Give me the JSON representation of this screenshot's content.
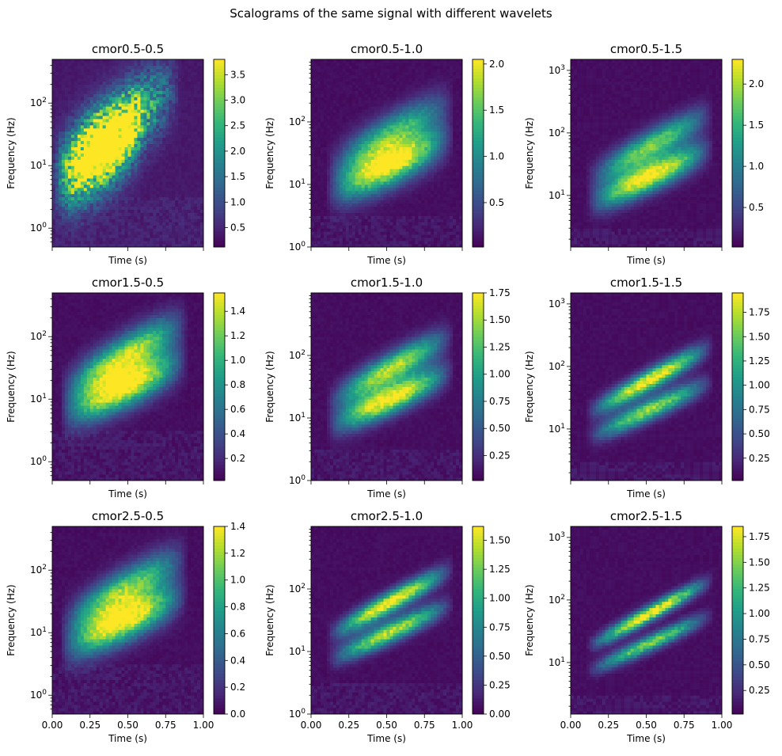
{
  "figure": {
    "suptitle": "Scalograms of the same signal with different wavelets"
  },
  "chart_data": [
    {
      "type": "heatmap",
      "title": "cmor0.5-0.5",
      "xlabel": "Time (s)",
      "ylabel": "Frequency (Hz)",
      "xlim": [
        0,
        1
      ],
      "yscale": "log",
      "ylim": [
        0.5,
        500
      ],
      "y_ticks": [
        "10^0",
        "10^1",
        "10^2"
      ],
      "y_tick_values": [
        1,
        10,
        100
      ],
      "x_ticks": [
        "0.00",
        "0.25",
        "0.50",
        "0.75",
        "1.00"
      ],
      "x_tick_values": [
        0,
        0.25,
        0.5,
        0.75,
        1
      ],
      "show_x_ticklabels": false,
      "colorbar": {
        "ticks": [
          "0.5",
          "1.0",
          "1.5",
          "2.0",
          "2.5",
          "3.0",
          "3.5"
        ],
        "values": [
          0.5,
          1.0,
          1.5,
          2.0,
          2.5,
          3.0,
          3.5
        ],
        "min": 0.12,
        "max": 3.8
      },
      "colormap": "viridis",
      "style": "noisy-broad",
      "chirps": [
        {
          "t0": 0.07,
          "t1": 0.62,
          "f0": 6,
          "f1": 45,
          "gain": 0.9
        },
        {
          "t0": 0.02,
          "t1": 0.85,
          "f0": 8,
          "f1": 200,
          "gain": 0.8
        }
      ]
    },
    {
      "type": "heatmap",
      "title": "cmor0.5-1.0",
      "xlabel": "Time (s)",
      "ylabel": "Frequency (Hz)",
      "xlim": [
        0,
        1
      ],
      "yscale": "log",
      "ylim": [
        1,
        1000
      ],
      "y_ticks": [
        "10^0",
        "10^1",
        "10^2"
      ],
      "y_tick_values": [
        1,
        10,
        100
      ],
      "x_ticks": [
        "0.00",
        "0.25",
        "0.50",
        "0.75",
        "1.00"
      ],
      "x_tick_values": [
        0,
        0.25,
        0.5,
        0.75,
        1
      ],
      "show_x_ticklabels": false,
      "colorbar": {
        "ticks": [
          "0.5",
          "1.0",
          "1.5",
          "2.0"
        ],
        "values": [
          0.5,
          1.0,
          1.5,
          2.0
        ],
        "min": 0.02,
        "max": 2.05
      },
      "colormap": "viridis",
      "style": "smooth-wide",
      "chirps": [
        {
          "t0": 0.15,
          "t1": 0.95,
          "f0": 8,
          "f1": 60,
          "gain": 1.0
        },
        {
          "t0": 0.15,
          "t1": 0.95,
          "f0": 20,
          "f1": 220,
          "gain": 0.65
        }
      ]
    },
    {
      "type": "heatmap",
      "title": "cmor0.5-1.5",
      "xlabel": "Time (s)",
      "ylabel": "Frequency (Hz)",
      "xlim": [
        0,
        1
      ],
      "yscale": "log",
      "ylim": [
        1.5,
        1500
      ],
      "y_ticks": [
        "10^1",
        "10^2",
        "10^3"
      ],
      "y_tick_values": [
        10,
        100,
        1000
      ],
      "x_ticks": [
        "0.00",
        "0.25",
        "0.50",
        "0.75",
        "1.00"
      ],
      "x_tick_values": [
        0,
        0.25,
        0.5,
        0.75,
        1
      ],
      "show_x_ticklabels": false,
      "colorbar": {
        "ticks": [
          "0.5",
          "1.0",
          "1.5",
          "2.0"
        ],
        "values": [
          0.5,
          1.0,
          1.5,
          2.0
        ],
        "min": 0.02,
        "max": 2.3
      },
      "colormap": "viridis",
      "style": "smooth",
      "chirps": [
        {
          "t0": 0.15,
          "t1": 0.95,
          "f0": 8,
          "f1": 60,
          "gain": 1.0
        },
        {
          "t0": 0.15,
          "t1": 0.95,
          "f0": 20,
          "f1": 220,
          "gain": 0.75
        }
      ]
    },
    {
      "type": "heatmap",
      "title": "cmor1.5-0.5",
      "xlabel": "Time (s)",
      "ylabel": "Frequency (Hz)",
      "xlim": [
        0,
        1
      ],
      "yscale": "log",
      "ylim": [
        0.5,
        500
      ],
      "y_ticks": [
        "10^0",
        "10^1",
        "10^2"
      ],
      "y_tick_values": [
        1,
        10,
        100
      ],
      "x_ticks": [
        "0.00",
        "0.25",
        "0.50",
        "0.75",
        "1.00"
      ],
      "x_tick_values": [
        0,
        0.25,
        0.5,
        0.75,
        1
      ],
      "show_x_ticklabels": false,
      "colorbar": {
        "ticks": [
          "0.2",
          "0.4",
          "0.6",
          "0.8",
          "1.0",
          "1.2",
          "1.4"
        ],
        "values": [
          0.2,
          0.4,
          0.6,
          0.8,
          1.0,
          1.2,
          1.4
        ],
        "min": 0.02,
        "max": 1.55
      },
      "colormap": "viridis",
      "style": "smooth-wide",
      "chirps": [
        {
          "t0": 0.1,
          "t1": 0.9,
          "f0": 6,
          "f1": 45,
          "gain": 1.0
        },
        {
          "t0": 0.1,
          "t1": 0.9,
          "f0": 15,
          "f1": 180,
          "gain": 0.85
        }
      ]
    },
    {
      "type": "heatmap",
      "title": "cmor1.5-1.0",
      "xlabel": "Time (s)",
      "ylabel": "Frequency (Hz)",
      "xlim": [
        0,
        1
      ],
      "yscale": "log",
      "ylim": [
        1,
        1000
      ],
      "y_ticks": [
        "10^0",
        "10^1",
        "10^2"
      ],
      "y_tick_values": [
        1,
        10,
        100
      ],
      "x_ticks": [
        "0.00",
        "0.25",
        "0.50",
        "0.75",
        "1.00"
      ],
      "x_tick_values": [
        0,
        0.25,
        0.5,
        0.75,
        1
      ],
      "show_x_ticklabels": false,
      "colorbar": {
        "ticks": [
          "0.25",
          "0.50",
          "0.75",
          "1.00",
          "1.25",
          "1.50",
          "1.75"
        ],
        "values": [
          0.25,
          0.5,
          0.75,
          1.0,
          1.25,
          1.5,
          1.75
        ],
        "min": 0.02,
        "max": 1.75
      },
      "colormap": "viridis",
      "style": "smooth",
      "chirps": [
        {
          "t0": 0.15,
          "t1": 0.95,
          "f0": 8,
          "f1": 60,
          "gain": 1.0
        },
        {
          "t0": 0.15,
          "t1": 0.95,
          "f0": 20,
          "f1": 220,
          "gain": 0.85
        }
      ]
    },
    {
      "type": "heatmap",
      "title": "cmor1.5-1.5",
      "xlabel": "Time (s)",
      "ylabel": "Frequency (Hz)",
      "xlim": [
        0,
        1
      ],
      "yscale": "log",
      "ylim": [
        1.5,
        1500
      ],
      "y_ticks": [
        "10^1",
        "10^2",
        "10^3"
      ],
      "y_tick_values": [
        10,
        100,
        1000
      ],
      "x_ticks": [
        "0.00",
        "0.25",
        "0.50",
        "0.75",
        "1.00"
      ],
      "x_tick_values": [
        0,
        0.25,
        0.5,
        0.75,
        1
      ],
      "show_x_ticklabels": false,
      "colorbar": {
        "ticks": [
          "0.25",
          "0.50",
          "0.75",
          "1.00",
          "1.25",
          "1.50",
          "1.75"
        ],
        "values": [
          0.25,
          0.5,
          0.75,
          1.0,
          1.25,
          1.5,
          1.75
        ],
        "min": 0.02,
        "max": 1.95
      },
      "colormap": "viridis",
      "style": "sharp",
      "chirps": [
        {
          "t0": 0.15,
          "t1": 0.95,
          "f0": 8,
          "f1": 60,
          "gain": 0.8
        },
        {
          "t0": 0.15,
          "t1": 0.95,
          "f0": 20,
          "f1": 220,
          "gain": 1.0
        }
      ]
    },
    {
      "type": "heatmap",
      "title": "cmor2.5-0.5",
      "xlabel": "Time (s)",
      "ylabel": "Frequency (Hz)",
      "xlim": [
        0,
        1
      ],
      "yscale": "log",
      "ylim": [
        0.5,
        500
      ],
      "y_ticks": [
        "10^0",
        "10^1",
        "10^2"
      ],
      "y_tick_values": [
        1,
        10,
        100
      ],
      "x_ticks": [
        "0.00",
        "0.25",
        "0.50",
        "0.75",
        "1.00"
      ],
      "x_tick_values": [
        0,
        0.25,
        0.5,
        0.75,
        1
      ],
      "show_x_ticklabels": true,
      "colorbar": {
        "ticks": [
          "0.0",
          "0.2",
          "0.4",
          "0.6",
          "0.8",
          "1.0",
          "1.2",
          "1.4"
        ],
        "values": [
          0,
          0.2,
          0.4,
          0.6,
          0.8,
          1.0,
          1.2,
          1.4
        ],
        "min": 0.0,
        "max": 1.4
      },
      "colormap": "viridis",
      "style": "smooth-wide",
      "chirps": [
        {
          "t0": 0.1,
          "t1": 0.9,
          "f0": 6,
          "f1": 45,
          "gain": 1.0
        },
        {
          "t0": 0.1,
          "t1": 0.9,
          "f0": 15,
          "f1": 180,
          "gain": 0.75
        }
      ]
    },
    {
      "type": "heatmap",
      "title": "cmor2.5-1.0",
      "xlabel": "Time (s)",
      "ylabel": "Frequency (Hz)",
      "xlim": [
        0,
        1
      ],
      "yscale": "log",
      "ylim": [
        1,
        1000
      ],
      "y_ticks": [
        "10^0",
        "10^1",
        "10^2"
      ],
      "y_tick_values": [
        1,
        10,
        100
      ],
      "x_ticks": [
        "0.00",
        "0.25",
        "0.50",
        "0.75",
        "1.00"
      ],
      "x_tick_values": [
        0,
        0.25,
        0.5,
        0.75,
        1
      ],
      "show_x_ticklabels": true,
      "colorbar": {
        "ticks": [
          "0.00",
          "0.25",
          "0.50",
          "0.75",
          "1.00",
          "1.25",
          "1.50"
        ],
        "values": [
          0,
          0.25,
          0.5,
          0.75,
          1.0,
          1.25,
          1.5
        ],
        "min": 0.0,
        "max": 1.62
      },
      "colormap": "viridis",
      "style": "sharp",
      "chirps": [
        {
          "t0": 0.15,
          "t1": 0.95,
          "f0": 8,
          "f1": 60,
          "gain": 0.85
        },
        {
          "t0": 0.15,
          "t1": 0.95,
          "f0": 20,
          "f1": 220,
          "gain": 1.0
        }
      ]
    },
    {
      "type": "heatmap",
      "title": "cmor2.5-1.5",
      "xlabel": "Time (s)",
      "ylabel": "Frequency (Hz)",
      "xlim": [
        0,
        1
      ],
      "yscale": "log",
      "ylim": [
        1.5,
        1500
      ],
      "y_ticks": [
        "10^1",
        "10^2",
        "10^3"
      ],
      "y_tick_values": [
        10,
        100,
        1000
      ],
      "x_ticks": [
        "0.00",
        "0.25",
        "0.50",
        "0.75",
        "1.00"
      ],
      "x_tick_values": [
        0,
        0.25,
        0.5,
        0.75,
        1
      ],
      "show_x_ticklabels": true,
      "colorbar": {
        "ticks": [
          "0.25",
          "0.50",
          "0.75",
          "1.00",
          "1.25",
          "1.50",
          "1.75"
        ],
        "values": [
          0.25,
          0.5,
          0.75,
          1.0,
          1.25,
          1.5,
          1.75
        ],
        "min": 0.02,
        "max": 1.85
      },
      "colormap": "viridis",
      "style": "sharper",
      "chirps": [
        {
          "t0": 0.15,
          "t1": 0.95,
          "f0": 8,
          "f1": 60,
          "gain": 0.75
        },
        {
          "t0": 0.15,
          "t1": 0.95,
          "f0": 20,
          "f1": 220,
          "gain": 1.0
        }
      ]
    }
  ]
}
